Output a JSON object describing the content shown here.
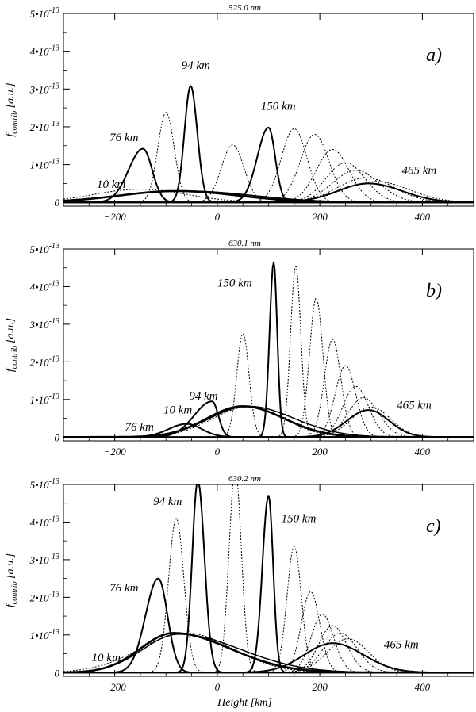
{
  "chart_data": [
    {
      "type": "line",
      "panel_label": "a)",
      "title": "525.0 nm",
      "xlabel": "",
      "ylabel": "f_contrib [a.u.]",
      "xlim": [
        -300,
        500
      ],
      "ylim": [
        -0.1,
        5
      ],
      "xticks": [
        -200,
        0,
        200,
        400
      ],
      "yticks": [
        0,
        1,
        2,
        3,
        4,
        5
      ],
      "ytick_labels": [
        "0",
        "1•10^-13",
        "2•10^-13",
        "3•10^-13",
        "4•10^-13",
        "5•10^-13"
      ],
      "annotations": [
        {
          "text": "10 km",
          "x": -235,
          "y": 0.38
        },
        {
          "text": "76 km",
          "x": -210,
          "y": 1.62
        },
        {
          "text": "94 km",
          "x": -70,
          "y": 3.53
        },
        {
          "text": "150 km",
          "x": 85,
          "y": 2.45
        },
        {
          "text": "465 km",
          "x": 360,
          "y": 0.75
        }
      ],
      "series": [
        {
          "style": "solid",
          "width": 2.0,
          "peak": 1.42,
          "center": -145,
          "sigma_left": 28,
          "sigma_right": 18
        },
        {
          "style": "solid",
          "width": 2.0,
          "peak": 3.08,
          "center": -52,
          "sigma_left": 12,
          "sigma_right": 13
        },
        {
          "style": "solid",
          "width": 2.0,
          "peak": 1.98,
          "center": 100,
          "sigma_left": 22,
          "sigma_right": 13
        },
        {
          "style": "solid",
          "width": 2.6,
          "peak": 0.3,
          "center": -80,
          "sigma_left": 110,
          "sigma_right": 120
        },
        {
          "style": "solid",
          "width": 1.5,
          "peak": 0.3,
          "center": -60,
          "sigma_left": 130,
          "sigma_right": 130
        },
        {
          "style": "solid",
          "width": 2.0,
          "peak": 0.5,
          "center": 295,
          "sigma_left": 60,
          "sigma_right": 65
        },
        {
          "style": "dotted",
          "width": 1.0,
          "peak": 2.38,
          "center": -100,
          "sigma_left": 16,
          "sigma_right": 16
        },
        {
          "style": "dotted",
          "width": 1.0,
          "peak": 1.52,
          "center": 30,
          "sigma_left": 22,
          "sigma_right": 22
        },
        {
          "style": "dotted",
          "width": 1.0,
          "peak": 1.95,
          "center": 150,
          "sigma_left": 25,
          "sigma_right": 25
        },
        {
          "style": "dotted",
          "width": 1.0,
          "peak": 1.8,
          "center": 190,
          "sigma_left": 28,
          "sigma_right": 28
        },
        {
          "style": "dotted",
          "width": 1.0,
          "peak": 1.4,
          "center": 225,
          "sigma_left": 32,
          "sigma_right": 32
        },
        {
          "style": "dotted",
          "width": 1.0,
          "peak": 1.05,
          "center": 250,
          "sigma_left": 38,
          "sigma_right": 38
        },
        {
          "style": "dotted",
          "width": 1.0,
          "peak": 0.85,
          "center": 270,
          "sigma_left": 45,
          "sigma_right": 45
        },
        {
          "style": "dotted",
          "width": 1.0,
          "peak": 0.65,
          "center": 290,
          "sigma_left": 55,
          "sigma_right": 55
        },
        {
          "style": "dotted",
          "width": 1.0,
          "peak": 0.55,
          "center": 310,
          "sigma_left": 65,
          "sigma_right": 65
        },
        {
          "style": "dotted",
          "width": 1.0,
          "peak": 0.35,
          "center": -150,
          "sigma_left": 90,
          "sigma_right": 90
        }
      ]
    },
    {
      "type": "line",
      "panel_label": "b)",
      "title": "630.1 nm",
      "xlabel": "",
      "ylabel": "f_contrib [a.u.]",
      "xlim": [
        -300,
        500
      ],
      "ylim": [
        -0.1,
        5
      ],
      "xticks": [
        -200,
        0,
        200,
        400
      ],
      "yticks": [
        0,
        1,
        2,
        3,
        4,
        5
      ],
      "ytick_labels": [
        "0",
        "1•10^-13",
        "2•10^-13",
        "3•10^-13",
        "4•10^-13",
        "5•10^-13"
      ],
      "annotations": [
        {
          "text": "150 km",
          "x": 0,
          "y": 4.0
        },
        {
          "text": "94 km",
          "x": -55,
          "y": 1.0
        },
        {
          "text": "10 km",
          "x": -105,
          "y": 0.63
        },
        {
          "text": "76 km",
          "x": -180,
          "y": 0.17
        },
        {
          "text": "465 km",
          "x": 350,
          "y": 0.75
        }
      ],
      "series": [
        {
          "style": "solid",
          "width": 2.0,
          "peak": 4.65,
          "center": 110,
          "sigma_left": 8,
          "sigma_right": 7
        },
        {
          "style": "solid",
          "width": 2.0,
          "peak": 0.95,
          "center": -10,
          "sigma_left": 35,
          "sigma_right": 12
        },
        {
          "style": "solid",
          "width": 2.6,
          "peak": 0.82,
          "center": 50,
          "sigma_left": 70,
          "sigma_right": 80
        },
        {
          "style": "solid",
          "width": 1.5,
          "peak": 0.82,
          "center": 60,
          "sigma_left": 75,
          "sigma_right": 90
        },
        {
          "style": "solid",
          "width": 2.0,
          "peak": 0.35,
          "center": -60,
          "sigma_left": 35,
          "sigma_right": 30
        },
        {
          "style": "solid",
          "width": 2.0,
          "peak": 0.72,
          "center": 295,
          "sigma_left": 42,
          "sigma_right": 40
        },
        {
          "style": "dotted",
          "width": 1.0,
          "peak": 2.75,
          "center": 50,
          "sigma_left": 12,
          "sigma_right": 12
        },
        {
          "style": "dotted",
          "width": 1.0,
          "peak": 4.55,
          "center": 153,
          "sigma_left": 10,
          "sigma_right": 10
        },
        {
          "style": "dotted",
          "width": 1.0,
          "peak": 3.7,
          "center": 193,
          "sigma_left": 13,
          "sigma_right": 13
        },
        {
          "style": "dotted",
          "width": 1.0,
          "peak": 2.6,
          "center": 225,
          "sigma_left": 16,
          "sigma_right": 16
        },
        {
          "style": "dotted",
          "width": 1.0,
          "peak": 1.9,
          "center": 250,
          "sigma_left": 20,
          "sigma_right": 20
        },
        {
          "style": "dotted",
          "width": 1.0,
          "peak": 1.35,
          "center": 270,
          "sigma_left": 25,
          "sigma_right": 25
        },
        {
          "style": "dotted",
          "width": 1.0,
          "peak": 1.05,
          "center": 285,
          "sigma_left": 30,
          "sigma_right": 30
        },
        {
          "style": "dotted",
          "width": 1.0,
          "peak": 0.8,
          "center": 300,
          "sigma_left": 38,
          "sigma_right": 38
        },
        {
          "style": "dotted",
          "width": 1.0,
          "peak": 0.8,
          "center": 60,
          "sigma_left": 70,
          "sigma_right": 70
        }
      ]
    },
    {
      "type": "line",
      "panel_label": "c)",
      "title": "630.2 nm",
      "xlabel": "Height [km]",
      "ylabel": "f_contrib [a.u.]",
      "xlim": [
        -300,
        500
      ],
      "ylim": [
        -0.1,
        5
      ],
      "xticks": [
        -200,
        0,
        200,
        400
      ],
      "yticks": [
        0,
        1,
        2,
        3,
        4,
        5
      ],
      "ytick_labels": [
        "0",
        "1•10^-13",
        "2•10^-13",
        "3•10^-13",
        "4•10^-13",
        "5•10^-13"
      ],
      "annotations": [
        {
          "text": "94 km",
          "x": -125,
          "y": 4.45
        },
        {
          "text": "150 km",
          "x": 125,
          "y": 4.0
        },
        {
          "text": "76 km",
          "x": -210,
          "y": 2.15
        },
        {
          "text": "10 km",
          "x": -245,
          "y": 0.3
        },
        {
          "text": "465 km",
          "x": 325,
          "y": 0.65
        }
      ],
      "series": [
        {
          "style": "solid",
          "width": 2.0,
          "peak": 2.5,
          "center": -115,
          "sigma_left": 25,
          "sigma_right": 18
        },
        {
          "style": "solid",
          "width": 2.0,
          "peak": 5.1,
          "center": -38,
          "sigma_left": 11,
          "sigma_right": 13
        },
        {
          "style": "solid",
          "width": 2.0,
          "peak": 4.7,
          "center": 100,
          "sigma_left": 12,
          "sigma_right": 9
        },
        {
          "style": "solid",
          "width": 2.6,
          "peak": 1.05,
          "center": -85,
          "sigma_left": 65,
          "sigma_right": 110
        },
        {
          "style": "solid",
          "width": 1.5,
          "peak": 1.02,
          "center": -75,
          "sigma_left": 70,
          "sigma_right": 120
        },
        {
          "style": "solid",
          "width": 2.0,
          "peak": 0.78,
          "center": 225,
          "sigma_left": 55,
          "sigma_right": 60
        },
        {
          "style": "dotted",
          "width": 1.0,
          "peak": 4.1,
          "center": -80,
          "sigma_left": 15,
          "sigma_right": 15
        },
        {
          "style": "dotted",
          "width": 1.0,
          "peak": 5.4,
          "center": 35,
          "sigma_left": 12,
          "sigma_right": 12
        },
        {
          "style": "dotted",
          "width": 1.0,
          "peak": 3.35,
          "center": 150,
          "sigma_left": 14,
          "sigma_right": 14
        },
        {
          "style": "dotted",
          "width": 1.0,
          "peak": 2.15,
          "center": 182,
          "sigma_left": 18,
          "sigma_right": 18
        },
        {
          "style": "dotted",
          "width": 1.0,
          "peak": 1.55,
          "center": 205,
          "sigma_left": 22,
          "sigma_right": 22
        },
        {
          "style": "dotted",
          "width": 1.0,
          "peak": 1.25,
          "center": 225,
          "sigma_left": 27,
          "sigma_right": 27
        },
        {
          "style": "dotted",
          "width": 1.0,
          "peak": 1.05,
          "center": 240,
          "sigma_left": 33,
          "sigma_right": 33
        },
        {
          "style": "dotted",
          "width": 1.0,
          "peak": 0.9,
          "center": 255,
          "sigma_left": 40,
          "sigma_right": 40
        },
        {
          "style": "dotted",
          "width": 1.0,
          "peak": 1.05,
          "center": -60,
          "sigma_left": 90,
          "sigma_right": 90
        }
      ]
    }
  ]
}
